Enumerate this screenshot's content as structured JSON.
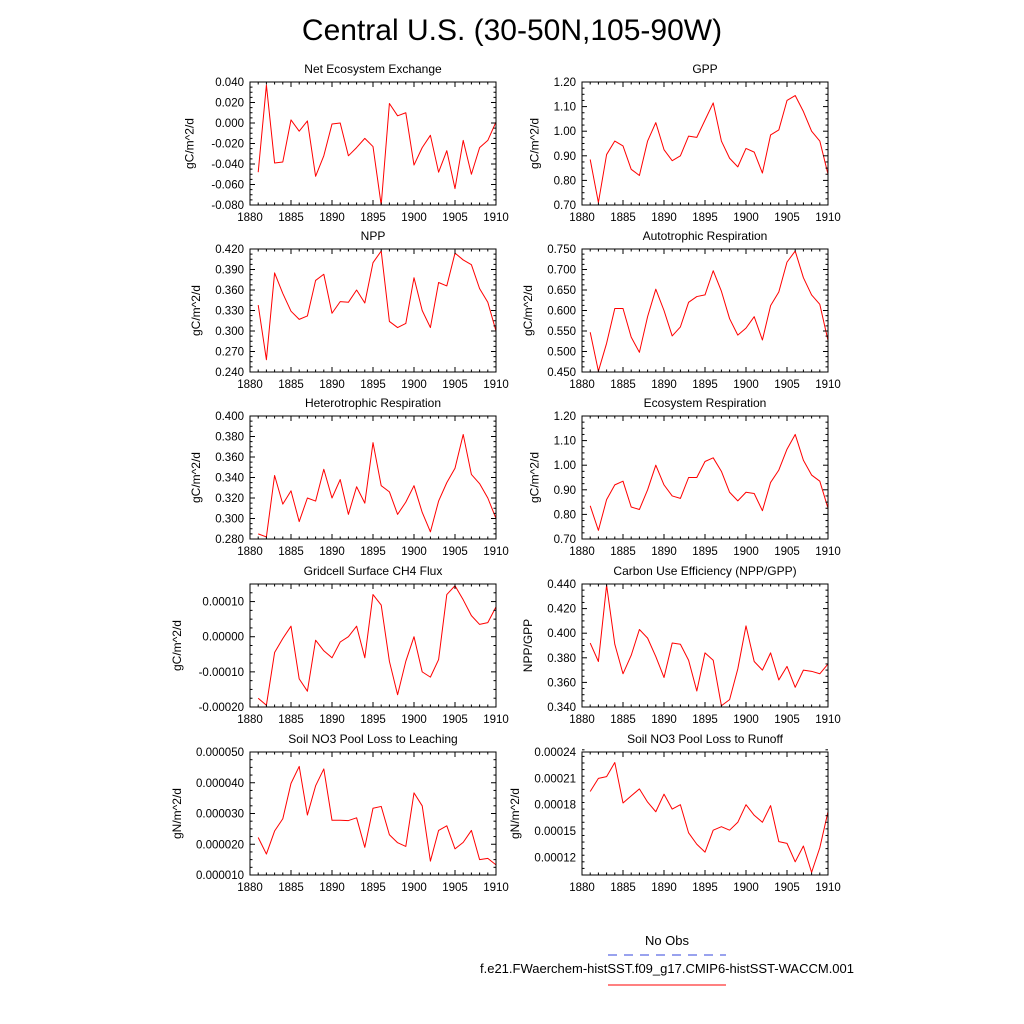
{
  "title": "Central U.S. (30-50N,105-90W)",
  "legend": {
    "entries": [
      {
        "label": "No Obs",
        "color": "#3344dd",
        "dash": true
      },
      {
        "label": "f.e21.FWaerchem-histSST.f09_g17.CMIP6-histSST-WACCM.001",
        "color": "#ff0000",
        "dash": false
      }
    ]
  },
  "series_color": "#ff0000",
  "chart_data": [
    {
      "type": "line",
      "title": "Net Ecosystem Exchange",
      "ylabel": "gC/m^2/d",
      "xlim": [
        1880,
        1910
      ],
      "xticks": [
        "1880",
        "1885",
        "1890",
        "1895",
        "1900",
        "1905",
        "1910"
      ],
      "ylim": [
        -0.08,
        0.04
      ],
      "yticks": [
        "-0.080",
        "-0.060",
        "-0.040",
        "-0.020",
        "0.000",
        "0.020",
        "0.040"
      ],
      "x": [
        1881,
        1882,
        1883,
        1884,
        1885,
        1886,
        1887,
        1888,
        1889,
        1890,
        1891,
        1892,
        1893,
        1894,
        1895,
        1896,
        1897,
        1898,
        1899,
        1900,
        1901,
        1902,
        1903,
        1904,
        1905,
        1906,
        1907,
        1908,
        1909,
        1910
      ],
      "values": [
        -0.048,
        0.037,
        -0.039,
        -0.038,
        0.003,
        -0.008,
        0.002,
        -0.052,
        -0.032,
        -0.001,
        0.0,
        -0.032,
        -0.024,
        -0.015,
        -0.023,
        -0.08,
        0.019,
        0.007,
        0.01,
        -0.041,
        -0.024,
        -0.012,
        -0.048,
        -0.027,
        -0.064,
        -0.017,
        -0.05,
        -0.024,
        -0.017,
        0.001
      ]
    },
    {
      "type": "line",
      "title": "GPP",
      "ylabel": "gC/m^2/d",
      "xlim": [
        1880,
        1910
      ],
      "xticks": [
        "1880",
        "1885",
        "1890",
        "1895",
        "1900",
        "1905",
        "1910"
      ],
      "ylim": [
        0.7,
        1.2
      ],
      "yticks": [
        "0.70",
        "0.80",
        "0.90",
        "1.00",
        "1.10",
        "1.20"
      ],
      "x": [
        1881,
        1882,
        1883,
        1884,
        1885,
        1886,
        1887,
        1888,
        1889,
        1890,
        1891,
        1892,
        1893,
        1894,
        1895,
        1896,
        1897,
        1898,
        1899,
        1900,
        1901,
        1902,
        1903,
        1904,
        1905,
        1906,
        1907,
        1908,
        1909,
        1910
      ],
      "values": [
        0.885,
        0.71,
        0.905,
        0.96,
        0.94,
        0.845,
        0.82,
        0.96,
        1.035,
        0.925,
        0.88,
        0.9,
        0.98,
        0.975,
        1.045,
        1.115,
        0.96,
        0.89,
        0.855,
        0.93,
        0.915,
        0.83,
        0.985,
        1.005,
        1.125,
        1.145,
        1.08,
        1.0,
        0.96,
        0.825
      ]
    },
    {
      "type": "line",
      "title": "NPP",
      "ylabel": "gC/m^2/d",
      "xlim": [
        1880,
        1910
      ],
      "xticks": [
        "1880",
        "1885",
        "1890",
        "1895",
        "1900",
        "1905",
        "1910"
      ],
      "ylim": [
        0.24,
        0.42
      ],
      "yticks": [
        "0.240",
        "0.270",
        "0.300",
        "0.330",
        "0.360",
        "0.390",
        "0.420"
      ],
      "x": [
        1881,
        1882,
        1883,
        1884,
        1885,
        1886,
        1887,
        1888,
        1889,
        1890,
        1891,
        1892,
        1893,
        1894,
        1895,
        1896,
        1897,
        1898,
        1899,
        1900,
        1901,
        1902,
        1903,
        1904,
        1905,
        1906,
        1907,
        1908,
        1909,
        1910
      ],
      "values": [
        0.338,
        0.258,
        0.385,
        0.355,
        0.329,
        0.317,
        0.322,
        0.374,
        0.383,
        0.326,
        0.343,
        0.342,
        0.36,
        0.341,
        0.4,
        0.417,
        0.314,
        0.305,
        0.311,
        0.378,
        0.33,
        0.305,
        0.371,
        0.366,
        0.414,
        0.404,
        0.397,
        0.362,
        0.342,
        0.3
      ]
    },
    {
      "type": "line",
      "title": "Autotrophic Respiration",
      "ylabel": "gC/m^2/d",
      "xlim": [
        1880,
        1910
      ],
      "xticks": [
        "1880",
        "1885",
        "1890",
        "1895",
        "1900",
        "1905",
        "1910"
      ],
      "ylim": [
        0.45,
        0.75
      ],
      "yticks": [
        "0.450",
        "0.500",
        "0.550",
        "0.600",
        "0.650",
        "0.700",
        "0.750"
      ],
      "x": [
        1881,
        1882,
        1883,
        1884,
        1885,
        1886,
        1887,
        1888,
        1889,
        1890,
        1891,
        1892,
        1893,
        1894,
        1895,
        1896,
        1897,
        1898,
        1899,
        1900,
        1901,
        1902,
        1903,
        1904,
        1905,
        1906,
        1907,
        1908,
        1909,
        1910
      ],
      "values": [
        0.547,
        0.452,
        0.52,
        0.605,
        0.605,
        0.535,
        0.498,
        0.585,
        0.652,
        0.6,
        0.538,
        0.56,
        0.62,
        0.634,
        0.638,
        0.697,
        0.647,
        0.58,
        0.54,
        0.557,
        0.585,
        0.528,
        0.612,
        0.645,
        0.718,
        0.745,
        0.68,
        0.638,
        0.615,
        0.527
      ]
    },
    {
      "type": "line",
      "title": "Heterotrophic Respiration",
      "ylabel": "gC/m^2/d",
      "xlim": [
        1880,
        1910
      ],
      "xticks": [
        "1880",
        "1885",
        "1890",
        "1895",
        "1900",
        "1905",
        "1910"
      ],
      "ylim": [
        0.28,
        0.4
      ],
      "yticks": [
        "0.280",
        "0.300",
        "0.320",
        "0.340",
        "0.360",
        "0.380",
        "0.400"
      ],
      "x": [
        1881,
        1882,
        1883,
        1884,
        1885,
        1886,
        1887,
        1888,
        1889,
        1890,
        1891,
        1892,
        1893,
        1894,
        1895,
        1896,
        1897,
        1898,
        1899,
        1900,
        1901,
        1902,
        1903,
        1904,
        1905,
        1906,
        1907,
        1908,
        1909,
        1910
      ],
      "values": [
        0.285,
        0.282,
        0.342,
        0.314,
        0.327,
        0.297,
        0.32,
        0.317,
        0.348,
        0.32,
        0.338,
        0.304,
        0.331,
        0.315,
        0.374,
        0.332,
        0.326,
        0.304,
        0.316,
        0.332,
        0.306,
        0.287,
        0.317,
        0.335,
        0.349,
        0.382,
        0.343,
        0.334,
        0.32,
        0.3
      ]
    },
    {
      "type": "line",
      "title": "Ecosystem Respiration",
      "ylabel": "gC/m^2/d",
      "xlim": [
        1880,
        1910
      ],
      "xticks": [
        "1880",
        "1885",
        "1890",
        "1895",
        "1900",
        "1905",
        "1910"
      ],
      "ylim": [
        0.7,
        1.2
      ],
      "yticks": [
        "0.70",
        "0.80",
        "0.90",
        "1.00",
        "1.10",
        "1.20"
      ],
      "x": [
        1881,
        1882,
        1883,
        1884,
        1885,
        1886,
        1887,
        1888,
        1889,
        1890,
        1891,
        1892,
        1893,
        1894,
        1895,
        1896,
        1897,
        1898,
        1899,
        1900,
        1901,
        1902,
        1903,
        1904,
        1905,
        1906,
        1907,
        1908,
        1909,
        1910
      ],
      "values": [
        0.835,
        0.735,
        0.86,
        0.92,
        0.935,
        0.83,
        0.82,
        0.9,
        1.0,
        0.92,
        0.875,
        0.865,
        0.95,
        0.95,
        1.015,
        1.03,
        0.975,
        0.89,
        0.855,
        0.89,
        0.885,
        0.815,
        0.93,
        0.98,
        1.065,
        1.125,
        1.02,
        0.96,
        0.935,
        0.825
      ]
    },
    {
      "type": "line",
      "title": "Gridcell Surface CH4 Flux",
      "ylabel": "gC/m^2/d",
      "xlim": [
        1880,
        1910
      ],
      "xticks": [
        "1880",
        "1885",
        "1890",
        "1895",
        "1900",
        "1905",
        "1910"
      ],
      "ylim": [
        -0.0002,
        0.00015
      ],
      "yticks": [
        "-0.00020",
        "-0.00010",
        "0.00000",
        "0.00010"
      ],
      "ytick_values": [
        -0.0002,
        -0.0001,
        0,
        0.0001
      ],
      "x": [
        1881,
        1882,
        1883,
        1884,
        1885,
        1886,
        1887,
        1888,
        1889,
        1890,
        1891,
        1892,
        1893,
        1894,
        1895,
        1896,
        1897,
        1898,
        1899,
        1900,
        1901,
        1902,
        1903,
        1904,
        1905,
        1906,
        1907,
        1908,
        1909,
        1910
      ],
      "values": [
        -0.000175,
        -0.000195,
        -4.5e-05,
        -5e-06,
        3e-05,
        -0.00012,
        -0.000155,
        -1e-05,
        -4e-05,
        -6e-05,
        -1.5e-05,
        0.0,
        3e-05,
        -6e-05,
        0.00012,
        9e-05,
        -7e-05,
        -0.000165,
        -7e-05,
        0.0,
        -0.0001,
        -0.000115,
        -6.5e-05,
        0.00012,
        0.000145,
        0.000105,
        6e-05,
        3.5e-05,
        4e-05,
        8.5e-05
      ]
    },
    {
      "type": "line",
      "title": "Carbon Use Efficiency (NPP/GPP)",
      "ylabel": "NPP/GPP",
      "xlim": [
        1880,
        1910
      ],
      "xticks": [
        "1880",
        "1885",
        "1890",
        "1895",
        "1900",
        "1905",
        "1910"
      ],
      "ylim": [
        0.34,
        0.44
      ],
      "yticks": [
        "0.340",
        "0.360",
        "0.380",
        "0.400",
        "0.420",
        "0.440"
      ],
      "x": [
        1881,
        1882,
        1883,
        1884,
        1885,
        1886,
        1887,
        1888,
        1889,
        1890,
        1891,
        1892,
        1893,
        1894,
        1895,
        1896,
        1897,
        1898,
        1899,
        1900,
        1901,
        1902,
        1903,
        1904,
        1905,
        1906,
        1907,
        1908,
        1909,
        1910
      ],
      "values": [
        0.392,
        0.377,
        0.439,
        0.391,
        0.367,
        0.382,
        0.403,
        0.396,
        0.381,
        0.364,
        0.392,
        0.391,
        0.378,
        0.353,
        0.384,
        0.378,
        0.341,
        0.346,
        0.371,
        0.406,
        0.377,
        0.37,
        0.384,
        0.362,
        0.373,
        0.356,
        0.37,
        0.369,
        0.367,
        0.375
      ]
    },
    {
      "type": "line",
      "title": "Soil NO3 Pool Loss to Leaching",
      "ylabel": "gN/m^2/d",
      "xlim": [
        1880,
        1910
      ],
      "xticks": [
        "1880",
        "1885",
        "1890",
        "1895",
        "1900",
        "1905",
        "1910"
      ],
      "ylim": [
        1e-05,
        5e-05
      ],
      "yticks": [
        "0.000010",
        "0.000020",
        "0.000030",
        "0.000040",
        "0.000050"
      ],
      "ytick_values": [
        1e-05,
        2e-05,
        3e-05,
        4e-05,
        5e-05
      ],
      "x": [
        1881,
        1882,
        1883,
        1884,
        1885,
        1886,
        1887,
        1888,
        1889,
        1890,
        1891,
        1892,
        1893,
        1894,
        1895,
        1896,
        1897,
        1898,
        1899,
        1900,
        1901,
        1902,
        1903,
        1904,
        1905,
        1906,
        1907,
        1908,
        1909,
        1910
      ],
      "values": [
        2.22e-05,
        1.68e-05,
        2.43e-05,
        2.83e-05,
        3.98e-05,
        4.53e-05,
        2.95e-05,
        3.9e-05,
        4.45e-05,
        2.78e-05,
        2.78e-05,
        2.77e-05,
        2.86e-05,
        1.9e-05,
        3.17e-05,
        3.23e-05,
        2.31e-05,
        2.05e-05,
        1.93e-05,
        3.67e-05,
        3.25e-05,
        1.45e-05,
        2.45e-05,
        2.6e-05,
        1.85e-05,
        2.06e-05,
        2.45e-05,
        1.5e-05,
        1.54e-05,
        1.33e-05
      ]
    },
    {
      "type": "line",
      "title": "Soil NO3 Pool Loss to Runoff",
      "ylabel": "gN/m^2/d",
      "xlim": [
        1880,
        1910
      ],
      "xticks": [
        "1880",
        "1885",
        "1890",
        "1895",
        "1900",
        "1905",
        "1910"
      ],
      "ylim": [
        0.0001,
        0.00024
      ],
      "yticks": [
        "0.00012",
        "0.00015",
        "0.00018",
        "0.00021",
        "0.00024"
      ],
      "ytick_values": [
        0.00012,
        0.00015,
        0.00018,
        0.00021,
        0.00024
      ],
      "x": [
        1881,
        1882,
        1883,
        1884,
        1885,
        1886,
        1887,
        1888,
        1889,
        1890,
        1891,
        1892,
        1893,
        1894,
        1895,
        1896,
        1897,
        1898,
        1899,
        1900,
        1901,
        1902,
        1903,
        1904,
        1905,
        1906,
        1907,
        1908,
        1909,
        1910
      ],
      "values": [
        0.000195,
        0.00021,
        0.000212,
        0.000228,
        0.000182,
        0.00019,
        0.000198,
        0.000183,
        0.000172,
        0.000192,
        0.000175,
        0.00018,
        0.000148,
        0.000135,
        0.000126,
        0.000151,
        0.000155,
        0.000151,
        0.00016,
        0.00018,
        0.000168,
        0.00016,
        0.000179,
        0.000138,
        0.000136,
        0.000115,
        0.000133,
        0.000103,
        0.000131,
        0.000172
      ]
    }
  ]
}
